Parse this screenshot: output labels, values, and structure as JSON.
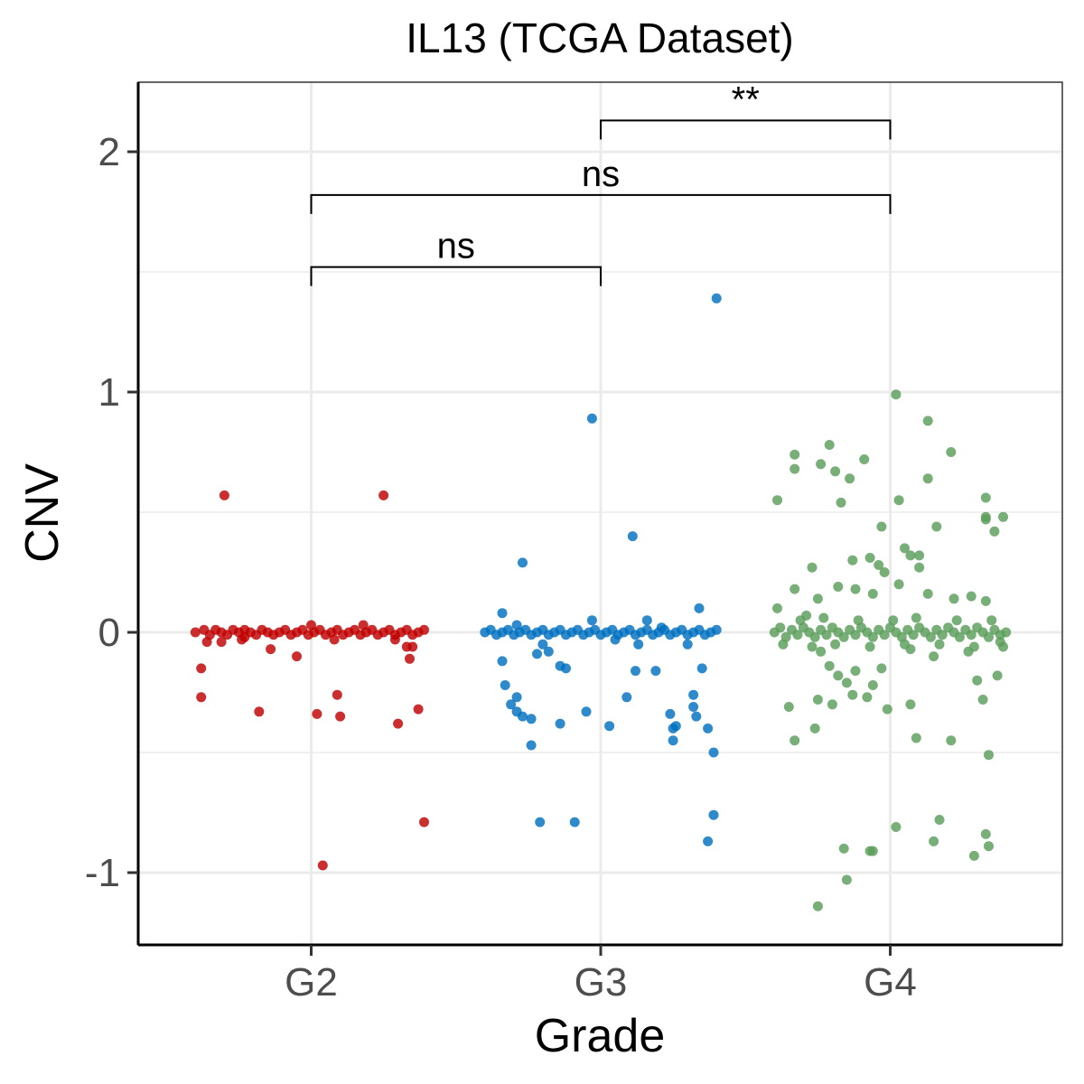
{
  "chart_data": {
    "type": "scatter",
    "title": "IL13 (TCGA Dataset)",
    "xlabel": "Grade",
    "ylabel": "CNV",
    "categories": [
      "G2",
      "G3",
      "G4"
    ],
    "y_ticks": [
      -1,
      0,
      1,
      2
    ],
    "y_tick_labels": [
      "-1",
      "0",
      "1",
      "2"
    ],
    "ylim": [
      -1.28,
      2.28
    ],
    "grid": true,
    "legend": "none",
    "colors": {
      "G2": "#c00000",
      "G3": "#0070c0",
      "G4": "#5a9e5a"
    },
    "series": [
      {
        "category": "G2",
        "points": [
          [
            -0.3,
            0.57
          ],
          [
            0.25,
            0.57
          ],
          [
            -0.38,
            -0.15
          ],
          [
            -0.38,
            -0.27
          ],
          [
            -0.18,
            -0.33
          ],
          [
            0.02,
            -0.34
          ],
          [
            0.09,
            -0.26
          ],
          [
            0.1,
            -0.35
          ],
          [
            0.3,
            -0.38
          ],
          [
            0.37,
            -0.32
          ],
          [
            0.04,
            -0.97
          ],
          [
            0.39,
            -0.79
          ],
          [
            -0.05,
            -0.1
          ],
          [
            0.34,
            -0.11
          ],
          [
            -0.14,
            -0.07
          ],
          [
            0.33,
            -0.06
          ],
          [
            0.35,
            -0.06
          ],
          [
            -0.36,
            -0.04
          ],
          [
            -0.31,
            -0.04
          ],
          [
            -0.23,
            -0.02
          ],
          [
            0.18,
            0.03
          ],
          [
            0.0,
            0.03
          ],
          [
            -0.4,
            0.0
          ],
          [
            -0.37,
            0.01
          ],
          [
            -0.35,
            -0.01
          ],
          [
            -0.33,
            0.01
          ],
          [
            -0.31,
            0.0
          ],
          [
            -0.29,
            -0.01
          ],
          [
            -0.27,
            0.01
          ],
          [
            -0.25,
            0.0
          ],
          [
            -0.23,
            0.01
          ],
          [
            -0.21,
            0.0
          ],
          [
            -0.19,
            -0.01
          ],
          [
            -0.17,
            0.01
          ],
          [
            -0.15,
            0.0
          ],
          [
            -0.13,
            -0.01
          ],
          [
            -0.11,
            0.0
          ],
          [
            -0.09,
            0.01
          ],
          [
            -0.07,
            -0.01
          ],
          [
            -0.05,
            0.0
          ],
          [
            -0.03,
            0.01
          ],
          [
            -0.01,
            -0.01
          ],
          [
            0.01,
            0.0
          ],
          [
            0.03,
            0.01
          ],
          [
            0.05,
            -0.01
          ],
          [
            0.07,
            0.0
          ],
          [
            0.09,
            0.01
          ],
          [
            0.11,
            -0.01
          ],
          [
            0.13,
            0.0
          ],
          [
            0.15,
            0.01
          ],
          [
            0.17,
            -0.01
          ],
          [
            0.19,
            0.0
          ],
          [
            0.21,
            0.01
          ],
          [
            0.23,
            -0.01
          ],
          [
            0.25,
            0.0
          ],
          [
            0.27,
            0.01
          ],
          [
            0.29,
            -0.01
          ],
          [
            0.31,
            0.0
          ],
          [
            0.33,
            0.01
          ],
          [
            0.35,
            -0.01
          ],
          [
            0.37,
            0.0
          ],
          [
            0.39,
            0.01
          ],
          [
            -0.24,
            -0.03
          ],
          [
            0.08,
            -0.03
          ],
          [
            0.29,
            -0.03
          ]
        ]
      },
      {
        "category": "G3",
        "points": [
          [
            0.4,
            1.39
          ],
          [
            -0.03,
            0.89
          ],
          [
            0.11,
            0.4
          ],
          [
            -0.27,
            0.29
          ],
          [
            -0.34,
            0.08
          ],
          [
            0.34,
            0.1
          ],
          [
            -0.03,
            0.05
          ],
          [
            0.16,
            0.05
          ],
          [
            -0.34,
            -0.12
          ],
          [
            -0.33,
            -0.22
          ],
          [
            -0.31,
            -0.3
          ],
          [
            -0.29,
            -0.27
          ],
          [
            -0.29,
            -0.33
          ],
          [
            -0.27,
            -0.35
          ],
          [
            -0.24,
            -0.36
          ],
          [
            -0.24,
            -0.47
          ],
          [
            -0.22,
            -0.09
          ],
          [
            -0.18,
            -0.08
          ],
          [
            -0.14,
            -0.14
          ],
          [
            -0.12,
            -0.15
          ],
          [
            -0.14,
            -0.38
          ],
          [
            -0.05,
            -0.33
          ],
          [
            0.03,
            -0.39
          ],
          [
            0.09,
            -0.27
          ],
          [
            0.12,
            -0.16
          ],
          [
            0.19,
            -0.16
          ],
          [
            0.24,
            -0.34
          ],
          [
            0.25,
            -0.4
          ],
          [
            0.25,
            -0.45
          ],
          [
            0.26,
            -0.39
          ],
          [
            0.32,
            -0.26
          ],
          [
            0.32,
            -0.31
          ],
          [
            0.33,
            -0.35
          ],
          [
            0.35,
            -0.15
          ],
          [
            0.37,
            -0.4
          ],
          [
            0.39,
            -0.5
          ],
          [
            0.39,
            -0.76
          ],
          [
            0.37,
            -0.87
          ],
          [
            -0.21,
            -0.79
          ],
          [
            -0.09,
            -0.79
          ],
          [
            0.3,
            -0.05
          ],
          [
            0.13,
            -0.05
          ],
          [
            -0.2,
            -0.05
          ],
          [
            -0.4,
            0.0
          ],
          [
            -0.38,
            0.01
          ],
          [
            -0.36,
            -0.01
          ],
          [
            -0.34,
            0.0
          ],
          [
            -0.32,
            0.01
          ],
          [
            -0.3,
            -0.01
          ],
          [
            -0.28,
            0.0
          ],
          [
            -0.26,
            0.01
          ],
          [
            -0.24,
            -0.01
          ],
          [
            -0.22,
            0.0
          ],
          [
            -0.2,
            0.01
          ],
          [
            -0.18,
            -0.01
          ],
          [
            -0.16,
            0.0
          ],
          [
            -0.14,
            0.01
          ],
          [
            -0.12,
            -0.01
          ],
          [
            -0.1,
            0.0
          ],
          [
            -0.08,
            0.01
          ],
          [
            -0.06,
            -0.01
          ],
          [
            -0.04,
            0.0
          ],
          [
            -0.02,
            0.01
          ],
          [
            0.0,
            -0.01
          ],
          [
            0.02,
            0.0
          ],
          [
            0.04,
            0.01
          ],
          [
            0.06,
            -0.01
          ],
          [
            0.08,
            0.0
          ],
          [
            0.1,
            0.01
          ],
          [
            0.12,
            -0.01
          ],
          [
            0.14,
            0.0
          ],
          [
            0.16,
            0.01
          ],
          [
            0.18,
            -0.01
          ],
          [
            0.2,
            0.0
          ],
          [
            0.22,
            0.01
          ],
          [
            0.24,
            -0.01
          ],
          [
            0.26,
            0.0
          ],
          [
            0.28,
            0.01
          ],
          [
            0.3,
            -0.01
          ],
          [
            0.32,
            0.0
          ],
          [
            0.34,
            0.01
          ],
          [
            0.36,
            -0.01
          ],
          [
            0.38,
            0.0
          ],
          [
            0.4,
            0.01
          ],
          [
            -0.29,
            0.03
          ],
          [
            0.05,
            -0.03
          ],
          [
            0.21,
            0.02
          ]
        ]
      },
      {
        "category": "G4",
        "points": [
          [
            0.02,
            0.99
          ],
          [
            0.13,
            0.88
          ],
          [
            0.21,
            0.75
          ],
          [
            -0.33,
            0.74
          ],
          [
            -0.21,
            0.78
          ],
          [
            -0.33,
            0.68
          ],
          [
            -0.24,
            0.7
          ],
          [
            -0.19,
            0.67
          ],
          [
            -0.14,
            0.64
          ],
          [
            -0.09,
            0.72
          ],
          [
            -0.39,
            0.55
          ],
          [
            -0.17,
            0.54
          ],
          [
            0.03,
            0.55
          ],
          [
            0.13,
            0.64
          ],
          [
            0.33,
            0.56
          ],
          [
            0.33,
            0.48
          ],
          [
            0.36,
            0.42
          ],
          [
            0.39,
            0.48
          ],
          [
            0.33,
            0.47
          ],
          [
            -0.03,
            0.44
          ],
          [
            0.16,
            0.44
          ],
          [
            0.05,
            0.35
          ],
          [
            0.1,
            0.32
          ],
          [
            0.07,
            0.32
          ],
          [
            0.1,
            0.27
          ],
          [
            -0.07,
            0.31
          ],
          [
            -0.13,
            0.3
          ],
          [
            -0.04,
            0.28
          ],
          [
            -0.02,
            0.25
          ],
          [
            -0.27,
            0.27
          ],
          [
            -0.33,
            0.18
          ],
          [
            -0.25,
            0.14
          ],
          [
            -0.18,
            0.19
          ],
          [
            -0.12,
            0.18
          ],
          [
            -0.06,
            0.16
          ],
          [
            0.03,
            0.2
          ],
          [
            0.13,
            0.16
          ],
          [
            0.22,
            0.14
          ],
          [
            0.28,
            0.15
          ],
          [
            0.33,
            0.13
          ],
          [
            -0.39,
            0.1
          ],
          [
            -0.29,
            0.07
          ],
          [
            -0.24,
            -0.08
          ],
          [
            -0.21,
            -0.14
          ],
          [
            -0.18,
            -0.18
          ],
          [
            -0.15,
            -0.21
          ],
          [
            -0.12,
            -0.16
          ],
          [
            -0.08,
            -0.27
          ],
          [
            -0.06,
            -0.22
          ],
          [
            -0.03,
            -0.15
          ],
          [
            -0.13,
            -0.26
          ],
          [
            -0.25,
            -0.28
          ],
          [
            -0.35,
            -0.31
          ],
          [
            -0.2,
            -0.3
          ],
          [
            -0.33,
            -0.45
          ],
          [
            -0.26,
            -0.4
          ],
          [
            -0.01,
            -0.32
          ],
          [
            0.07,
            -0.3
          ],
          [
            0.09,
            -0.44
          ],
          [
            0.21,
            -0.45
          ],
          [
            0.3,
            -0.2
          ],
          [
            0.32,
            -0.28
          ],
          [
            0.34,
            -0.51
          ],
          [
            0.37,
            -0.18
          ],
          [
            0.39,
            -0.06
          ],
          [
            0.02,
            -0.81
          ],
          [
            0.17,
            -0.78
          ],
          [
            0.15,
            -0.87
          ],
          [
            0.29,
            -0.93
          ],
          [
            0.33,
            -0.84
          ],
          [
            0.34,
            -0.89
          ],
          [
            -0.16,
            -0.9
          ],
          [
            -0.07,
            -0.91
          ],
          [
            -0.06,
            -0.91
          ],
          [
            -0.15,
            -1.03
          ],
          [
            -0.25,
            -1.14
          ],
          [
            0.15,
            -0.1
          ],
          [
            0.07,
            -0.07
          ],
          [
            0.27,
            -0.08
          ],
          [
            -0.4,
            0.0
          ],
          [
            -0.38,
            0.02
          ],
          [
            -0.36,
            -0.02
          ],
          [
            -0.34,
            0.01
          ],
          [
            -0.32,
            -0.01
          ],
          [
            -0.3,
            0.02
          ],
          [
            -0.28,
            0.0
          ],
          [
            -0.26,
            -0.02
          ],
          [
            -0.24,
            0.01
          ],
          [
            -0.22,
            -0.01
          ],
          [
            -0.2,
            0.02
          ],
          [
            -0.18,
            0.0
          ],
          [
            -0.16,
            -0.02
          ],
          [
            -0.14,
            0.01
          ],
          [
            -0.12,
            -0.01
          ],
          [
            -0.1,
            0.02
          ],
          [
            -0.08,
            0.0
          ],
          [
            -0.06,
            -0.02
          ],
          [
            -0.04,
            0.01
          ],
          [
            -0.02,
            -0.01
          ],
          [
            0.0,
            0.02
          ],
          [
            0.02,
            0.0
          ],
          [
            0.04,
            -0.02
          ],
          [
            0.06,
            0.01
          ],
          [
            0.08,
            -0.01
          ],
          [
            0.1,
            0.02
          ],
          [
            0.12,
            0.0
          ],
          [
            0.14,
            -0.02
          ],
          [
            0.16,
            0.01
          ],
          [
            0.18,
            -0.01
          ],
          [
            0.2,
            0.02
          ],
          [
            0.22,
            0.0
          ],
          [
            0.24,
            -0.02
          ],
          [
            0.26,
            0.01
          ],
          [
            0.28,
            -0.01
          ],
          [
            0.3,
            0.02
          ],
          [
            0.32,
            0.0
          ],
          [
            0.34,
            -0.02
          ],
          [
            0.36,
            0.01
          ],
          [
            0.38,
            -0.01
          ],
          [
            0.4,
            0.0
          ],
          [
            -0.37,
            -0.05
          ],
          [
            -0.31,
            0.05
          ],
          [
            -0.27,
            -0.06
          ],
          [
            -0.23,
            0.06
          ],
          [
            -0.19,
            -0.05
          ],
          [
            -0.11,
            0.05
          ],
          [
            -0.07,
            -0.06
          ],
          [
            0.01,
            0.05
          ],
          [
            0.05,
            -0.05
          ],
          [
            0.09,
            0.06
          ],
          [
            0.17,
            -0.05
          ],
          [
            0.23,
            0.05
          ],
          [
            0.29,
            -0.06
          ],
          [
            0.35,
            0.05
          ],
          [
            0.38,
            -0.04
          ]
        ]
      }
    ],
    "comparisons": [
      {
        "from": "G2",
        "to": "G3",
        "y": 1.52,
        "label": "ns"
      },
      {
        "from": "G2",
        "to": "G4",
        "y": 1.82,
        "label": "ns"
      },
      {
        "from": "G3",
        "to": "G4",
        "y": 2.13,
        "label": "**"
      }
    ]
  }
}
